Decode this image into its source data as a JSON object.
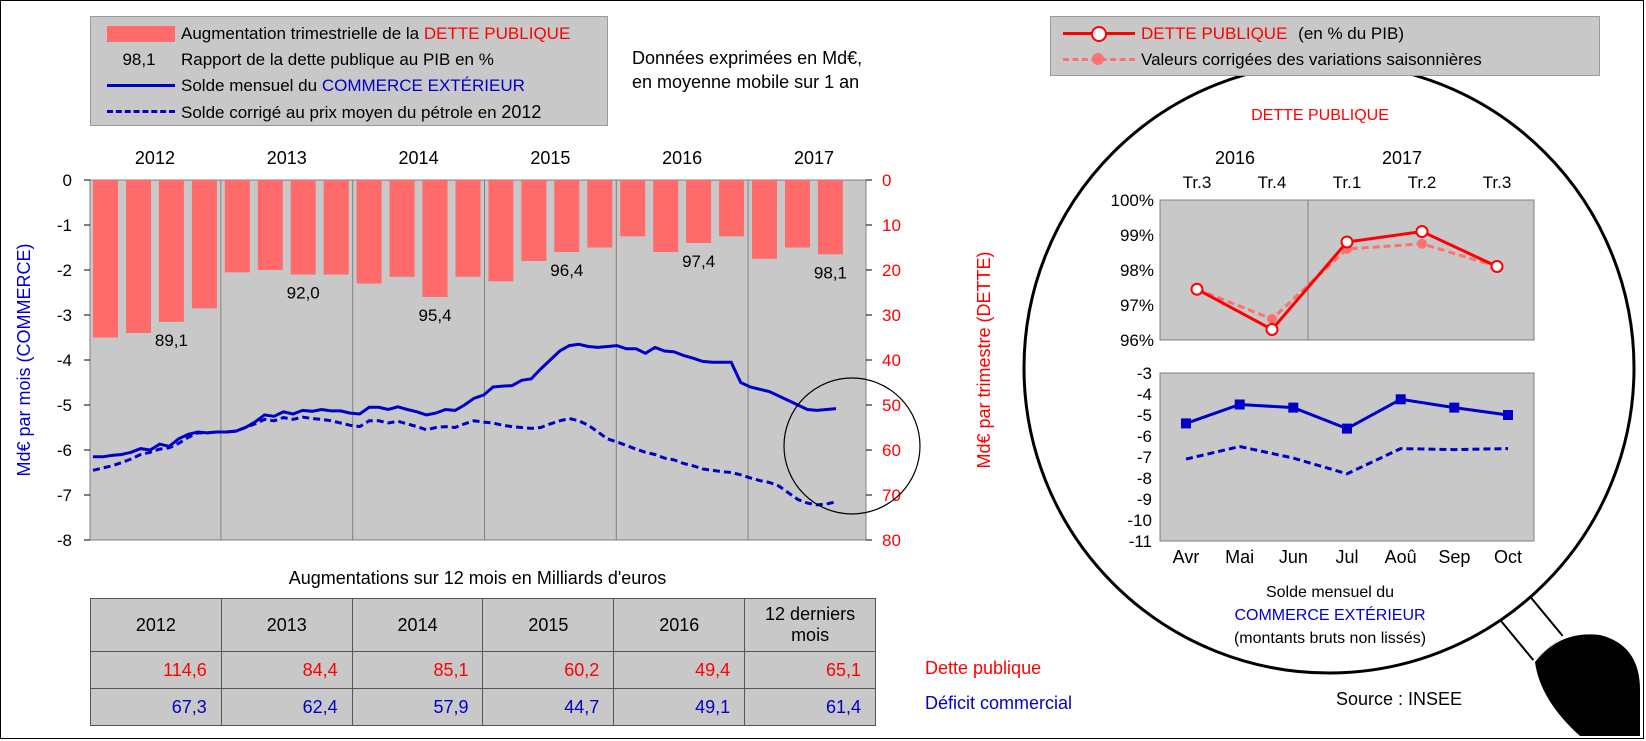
{
  "legend_left": {
    "row1_prefix": "Augmentation trimestrielle de la",
    "row1_highlight": "DETTE PUBLIQUE",
    "row2_symbol": "98,1",
    "row2_text": "Rapport de la dette publique au PIB en %",
    "row3_prefix": "Solde mensuel du",
    "row3_highlight": "COMMERCE EXTÉRIEUR",
    "row4_prefix": "Solde corrigé au prix moyen du pétrole en",
    "row4_year": "2012"
  },
  "note": {
    "line1": "Données exprimées en Md€,",
    "line2": "en moyenne mobile sur 1 an"
  },
  "legend_right": {
    "row1_highlight": "DETTE PUBLIQUE",
    "row1_suffix": "(en % du PIB)",
    "row2": "Valeurs corrigées des variations saisonnières"
  },
  "table": {
    "title": "Augmentations sur 12 mois en Milliards d'euros",
    "headers": [
      "2012",
      "2013",
      "2014",
      "2015",
      "2016",
      "12 derniers mois"
    ],
    "dette": [
      "114,6",
      "84,4",
      "85,1",
      "60,2",
      "49,4",
      "65,1"
    ],
    "deficit": [
      "67,3",
      "62,4",
      "57,9",
      "44,7",
      "49,1",
      "61,4"
    ],
    "dette_label": "Dette publique",
    "deficit_label": "Déficit commercial"
  },
  "lens": {
    "title": "DETTE PUBLIQUE",
    "bottom_line1": "Solde mensuel du",
    "bottom_line2": "COMMERCE EXTÉRIEUR",
    "bottom_line3": "(montants bruts non lissés)"
  },
  "source": "Source : INSEE",
  "colors": {
    "debt_bar": "#ff6a6a",
    "commerce": "#0000c8",
    "debt_line": "#ff0000",
    "debt_cvs": "#ff7070",
    "plot_bg": "#c8c8c8"
  },
  "chart_data": [
    {
      "type": "bar+line",
      "x_labels": [
        "2012",
        "2013",
        "2014",
        "2015",
        "2016",
        "2017"
      ],
      "ylabel_left": "Md€ par mois (COMMERCE)",
      "ylabel_right": "Md€ par trimestre (DETTE)",
      "y_left_ticks": [
        "0",
        "-1",
        "-2",
        "-3",
        "-4",
        "-5",
        "-6",
        "-7",
        "-8"
      ],
      "y_right_ticks": [
        "0",
        "10",
        "20",
        "30",
        "40",
        "50",
        "60",
        "70",
        "80"
      ],
      "ylim_left": [
        -8,
        0
      ],
      "ylim_right": [
        80,
        0
      ],
      "debt_bars": [
        35,
        34,
        31.5,
        28.5,
        20.5,
        20,
        21,
        21,
        23,
        21.5,
        26,
        21.5,
        22.5,
        18,
        16,
        15,
        12.5,
        16,
        14,
        12.5,
        17.5,
        15,
        16.5
      ],
      "ratio_labels": [
        {
          "bar": 2,
          "text": "89,1"
        },
        {
          "bar": 6,
          "text": "92,0"
        },
        {
          "bar": 10,
          "text": "95,4"
        },
        {
          "bar": 14,
          "text": "96,4"
        },
        {
          "bar": 18,
          "text": "97,4"
        },
        {
          "bar": 22,
          "text": "98,1"
        }
      ],
      "commerce_solde": [
        -6.15,
        -6.15,
        -6.12,
        -6.1,
        -6.05,
        -5.97,
        -6.0,
        -5.87,
        -5.92,
        -5.75,
        -5.65,
        -5.6,
        -5.62,
        -5.6,
        -5.6,
        -5.58,
        -5.5,
        -5.38,
        -5.22,
        -5.25,
        -5.15,
        -5.2,
        -5.12,
        -5.14,
        -5.1,
        -5.13,
        -5.13,
        -5.18,
        -5.2,
        -5.05,
        -5.05,
        -5.1,
        -5.04,
        -5.1,
        -5.15,
        -5.22,
        -5.18,
        -5.1,
        -5.12,
        -5.0,
        -4.85,
        -4.78,
        -4.6,
        -4.58,
        -4.57,
        -4.45,
        -4.42,
        -4.2,
        -4.0,
        -3.8,
        -3.68,
        -3.65,
        -3.7,
        -3.72,
        -3.7,
        -3.68,
        -3.75,
        -3.75,
        -3.85,
        -3.72,
        -3.8,
        -3.82,
        -3.9,
        -3.96,
        -4.03,
        -4.05,
        -4.05,
        -4.05,
        -4.5,
        -4.6,
        -4.65,
        -4.7,
        -4.8,
        -4.9,
        -5.0,
        -5.1,
        -5.12,
        -5.1,
        -5.08
      ],
      "commerce_corrige": [
        -6.45,
        -6.4,
        -6.35,
        -6.28,
        -6.2,
        -6.1,
        -6.05,
        -5.98,
        -5.95,
        -5.85,
        -5.72,
        -5.62,
        -5.62,
        -5.6,
        -5.6,
        -5.58,
        -5.5,
        -5.42,
        -5.32,
        -5.35,
        -5.28,
        -5.32,
        -5.27,
        -5.3,
        -5.32,
        -5.35,
        -5.4,
        -5.45,
        -5.48,
        -5.35,
        -5.35,
        -5.4,
        -5.36,
        -5.42,
        -5.48,
        -5.55,
        -5.5,
        -5.48,
        -5.5,
        -5.42,
        -5.35,
        -5.38,
        -5.4,
        -5.45,
        -5.48,
        -5.5,
        -5.52,
        -5.5,
        -5.42,
        -5.35,
        -5.3,
        -5.35,
        -5.45,
        -5.6,
        -5.75,
        -5.82,
        -5.9,
        -5.98,
        -6.05,
        -6.1,
        -6.18,
        -6.22,
        -6.3,
        -6.35,
        -6.42,
        -6.45,
        -6.48,
        -6.5,
        -6.55,
        -6.62,
        -6.68,
        -6.72,
        -6.8,
        -6.95,
        -7.1,
        -7.18,
        -7.22,
        -7.2,
        -7.15
      ]
    },
    {
      "type": "line",
      "title": "DETTE PUBLIQUE",
      "categories": [
        "Tr.3",
        "Tr.4",
        "Tr.1",
        "Tr.2",
        "Tr.3"
      ],
      "years": [
        "2016",
        "2017"
      ],
      "y_ticks": [
        "100%",
        "99%",
        "98%",
        "97%",
        "96%"
      ],
      "ylim": [
        96,
        100
      ],
      "series": [
        {
          "name": "DETTE PUBLIQUE",
          "values": [
            97.45,
            96.3,
            98.8,
            99.1,
            98.1
          ]
        },
        {
          "name": "Valeurs corrigées des variations saisonnières",
          "values": [
            97.45,
            96.6,
            98.6,
            98.75,
            98.1
          ]
        }
      ]
    },
    {
      "type": "line",
      "categories": [
        "Avr",
        "Mai",
        "Jun",
        "Jul",
        "Aoû",
        "Sep",
        "Oct"
      ],
      "y_ticks": [
        "-3",
        "-4",
        "-5",
        "-6",
        "-7",
        "-8",
        "-9",
        "-10",
        "-11"
      ],
      "ylim": [
        -11,
        -3
      ],
      "series": [
        {
          "values": [
            -5.4,
            -4.5,
            -4.65,
            -5.65,
            -4.25,
            -4.65,
            -5.0
          ]
        },
        {
          "values": [
            -7.1,
            -6.5,
            -7.05,
            -7.8,
            -6.6,
            -6.65,
            -6.6
          ]
        }
      ]
    }
  ]
}
